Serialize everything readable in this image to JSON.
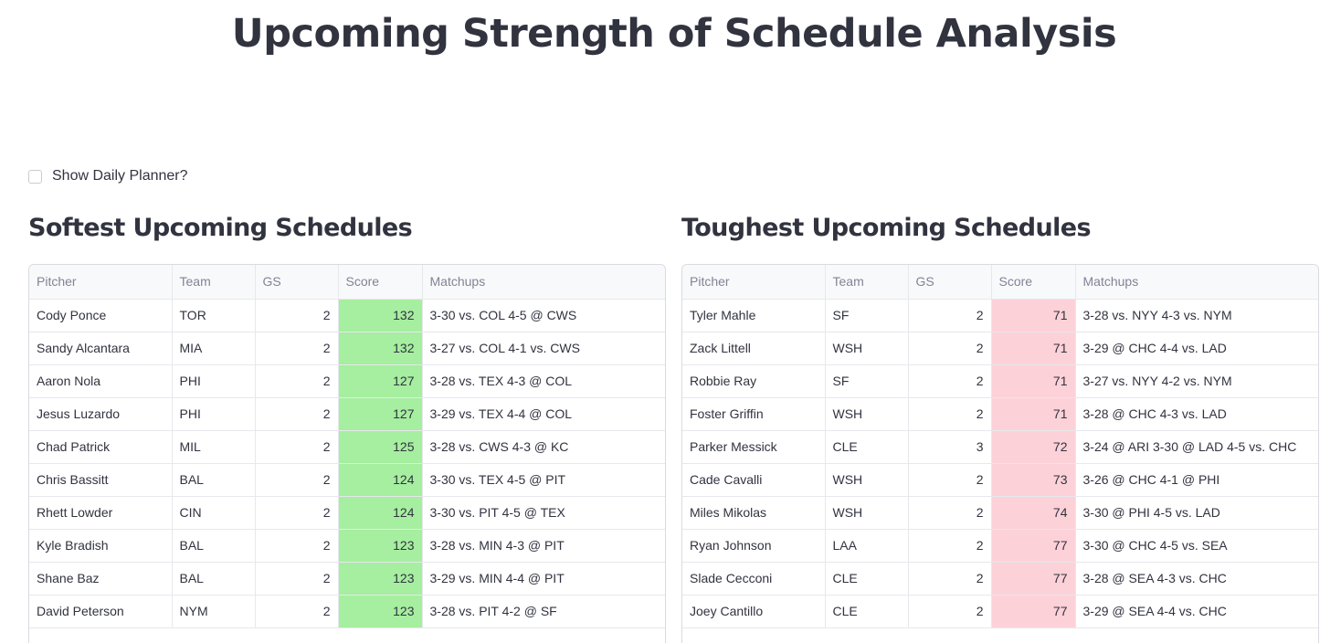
{
  "page": {
    "title": "Upcoming Strength of Schedule Analysis"
  },
  "planner": {
    "label": "Show Daily Planner?",
    "checked": false
  },
  "columns": [
    "Pitcher",
    "Team",
    "GS",
    "Score",
    "Matchups"
  ],
  "softest": {
    "title": "Softest Upcoming Schedules",
    "score_color": "#a6eea0",
    "rows": [
      {
        "pitcher": "Cody Ponce",
        "team": "TOR",
        "gs": "2",
        "score": "132",
        "matchups": "3-30 vs. COL  4-5 @ CWS"
      },
      {
        "pitcher": "Sandy Alcantara",
        "team": "MIA",
        "gs": "2",
        "score": "132",
        "matchups": "3-27 vs. COL  4-1 vs. CWS"
      },
      {
        "pitcher": "Aaron Nola",
        "team": "PHI",
        "gs": "2",
        "score": "127",
        "matchups": "3-28 vs. TEX  4-3 @ COL"
      },
      {
        "pitcher": "Jesus Luzardo",
        "team": "PHI",
        "gs": "2",
        "score": "127",
        "matchups": "3-29 vs. TEX  4-4 @ COL"
      },
      {
        "pitcher": "Chad Patrick",
        "team": "MIL",
        "gs": "2",
        "score": "125",
        "matchups": "3-28 vs. CWS  4-3 @ KC"
      },
      {
        "pitcher": "Chris Bassitt",
        "team": "BAL",
        "gs": "2",
        "score": "124",
        "matchups": "3-30 vs. TEX  4-5 @ PIT"
      },
      {
        "pitcher": "Rhett Lowder",
        "team": "CIN",
        "gs": "2",
        "score": "124",
        "matchups": "3-30 vs. PIT  4-5 @ TEX"
      },
      {
        "pitcher": "Kyle Bradish",
        "team": "BAL",
        "gs": "2",
        "score": "123",
        "matchups": "3-28 vs. MIN  4-3 @ PIT"
      },
      {
        "pitcher": "Shane Baz",
        "team": "BAL",
        "gs": "2",
        "score": "123",
        "matchups": "3-29 vs. MIN  4-4 @ PIT"
      },
      {
        "pitcher": "David Peterson",
        "team": "NYM",
        "gs": "2",
        "score": "123",
        "matchups": "3-28 vs. PIT  4-2 @ SF"
      }
    ]
  },
  "toughest": {
    "title": "Toughest Upcoming Schedules",
    "score_color": "#fdd1d8",
    "rows": [
      {
        "pitcher": "Tyler Mahle",
        "team": "SF",
        "gs": "2",
        "score": "71",
        "matchups": "3-28 vs. NYY  4-3 vs. NYM"
      },
      {
        "pitcher": "Zack Littell",
        "team": "WSH",
        "gs": "2",
        "score": "71",
        "matchups": "3-29 @ CHC  4-4 vs. LAD"
      },
      {
        "pitcher": "Robbie Ray",
        "team": "SF",
        "gs": "2",
        "score": "71",
        "matchups": "3-27 vs. NYY  4-2 vs. NYM"
      },
      {
        "pitcher": "Foster Griffin",
        "team": "WSH",
        "gs": "2",
        "score": "71",
        "matchups": "3-28 @ CHC  4-3 vs. LAD"
      },
      {
        "pitcher": "Parker Messick",
        "team": "CLE",
        "gs": "3",
        "score": "72",
        "matchups": "3-24 @ ARI  3-30 @ LAD  4-5 vs. CHC"
      },
      {
        "pitcher": "Cade Cavalli",
        "team": "WSH",
        "gs": "2",
        "score": "73",
        "matchups": "3-26 @ CHC  4-1 @ PHI"
      },
      {
        "pitcher": "Miles Mikolas",
        "team": "WSH",
        "gs": "2",
        "score": "74",
        "matchups": "3-30 @ PHI  4-5 vs. LAD"
      },
      {
        "pitcher": "Ryan Johnson",
        "team": "LAA",
        "gs": "2",
        "score": "77",
        "matchups": "3-30 @ CHC  4-5 vs. SEA"
      },
      {
        "pitcher": "Slade Cecconi",
        "team": "CLE",
        "gs": "2",
        "score": "77",
        "matchups": "3-28 @ SEA  4-3 vs. CHC"
      },
      {
        "pitcher": "Joey Cantillo",
        "team": "CLE",
        "gs": "2",
        "score": "77",
        "matchups": "3-29 @ SEA  4-4 vs. CHC"
      }
    ]
  }
}
